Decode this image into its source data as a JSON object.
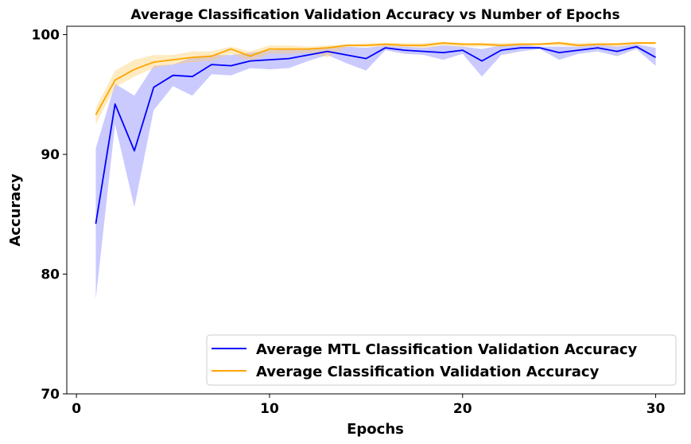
{
  "chart_data": {
    "type": "line",
    "title": "Average Classification Validation Accuracy vs Number of Epochs",
    "xlabel": "Epochs",
    "ylabel": "Accuracy",
    "xlim": [
      -0.5,
      31.5
    ],
    "ylim": [
      70,
      100.7
    ],
    "xticks": [
      0,
      10,
      20,
      30
    ],
    "yticks": [
      70,
      80,
      90,
      100
    ],
    "grid": false,
    "legend_position": "lower-right",
    "x": [
      1,
      2,
      3,
      4,
      5,
      6,
      7,
      8,
      9,
      10,
      11,
      12,
      13,
      14,
      15,
      16,
      17,
      18,
      19,
      20,
      21,
      22,
      23,
      24,
      25,
      26,
      27,
      28,
      29,
      30
    ],
    "series": [
      {
        "name": "Average MTL Classification Validation Accuracy",
        "color": "#0000ff",
        "band_color": "#6666ff",
        "values": [
          84.2,
          94.2,
          90.3,
          95.6,
          96.6,
          96.5,
          97.5,
          97.4,
          97.8,
          97.9,
          98.0,
          98.3,
          98.6,
          98.3,
          98.0,
          98.9,
          98.7,
          98.6,
          98.5,
          98.7,
          97.8,
          98.7,
          98.9,
          98.9,
          98.5,
          98.7,
          98.9,
          98.6,
          99.0,
          98.1
        ],
        "upper": [
          90.5,
          95.9,
          94.9,
          97.4,
          97.5,
          98.1,
          98.3,
          98.3,
          98.5,
          98.7,
          98.8,
          98.8,
          98.9,
          99.0,
          98.9,
          99.1,
          99.0,
          98.9,
          99.1,
          99.0,
          98.8,
          99.1,
          99.2,
          99.0,
          99.0,
          99.0,
          99.2,
          99.0,
          99.2,
          98.9
        ],
        "lower": [
          77.9,
          92.5,
          85.6,
          93.7,
          95.7,
          94.9,
          96.7,
          96.6,
          97.2,
          97.1,
          97.2,
          97.8,
          98.3,
          97.6,
          97.0,
          98.7,
          98.4,
          98.3,
          97.9,
          98.4,
          96.5,
          98.3,
          98.6,
          98.8,
          97.9,
          98.4,
          98.6,
          98.2,
          98.8,
          97.4
        ]
      },
      {
        "name": "Average Classification Validation Accuracy",
        "color": "#ffa500",
        "band_color": "#ffcc66",
        "values": [
          93.3,
          96.2,
          97.1,
          97.7,
          97.9,
          98.1,
          98.2,
          98.8,
          98.2,
          98.8,
          98.8,
          98.8,
          98.9,
          99.1,
          99.1,
          99.2,
          99.1,
          99.1,
          99.3,
          99.2,
          99.2,
          99.1,
          99.2,
          99.2,
          99.3,
          99.1,
          99.2,
          99.2,
          99.3,
          99.3
        ],
        "upper": [
          93.9,
          97.0,
          97.9,
          98.3,
          98.3,
          98.6,
          98.6,
          99.0,
          98.6,
          99.1,
          99.1,
          99.0,
          99.1,
          99.2,
          99.3,
          99.3,
          99.3,
          99.3,
          99.4,
          99.3,
          99.3,
          99.3,
          99.3,
          99.3,
          99.4,
          99.3,
          99.3,
          99.3,
          99.4,
          99.4
        ],
        "lower": [
          92.5,
          95.6,
          96.5,
          97.2,
          97.5,
          97.7,
          97.8,
          98.4,
          97.8,
          98.4,
          98.4,
          98.5,
          98.1,
          99.0,
          99.0,
          99.0,
          99.0,
          98.9,
          99.1,
          99.0,
          99.0,
          99.0,
          99.1,
          99.1,
          99.1,
          99.0,
          99.1,
          99.0,
          99.2,
          99.2
        ]
      }
    ]
  }
}
